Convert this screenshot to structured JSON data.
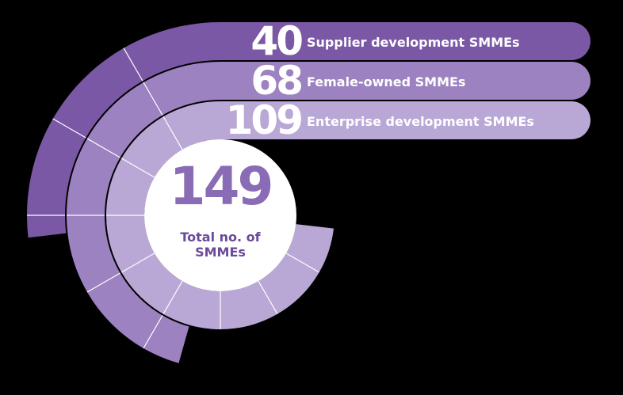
{
  "total": {
    "value": 149,
    "label": "Total no. of SMMEs"
  },
  "items": [
    {
      "value": 40,
      "label": "Supplier development SMMEs",
      "color": "#7b58a6"
    },
    {
      "value": 68,
      "label": "Female-owned SMMEs",
      "color": "#9c82c0"
    },
    {
      "value": 109,
      "label": "Enterprise development SMMEs",
      "color": "#b9a7d6"
    }
  ]
}
